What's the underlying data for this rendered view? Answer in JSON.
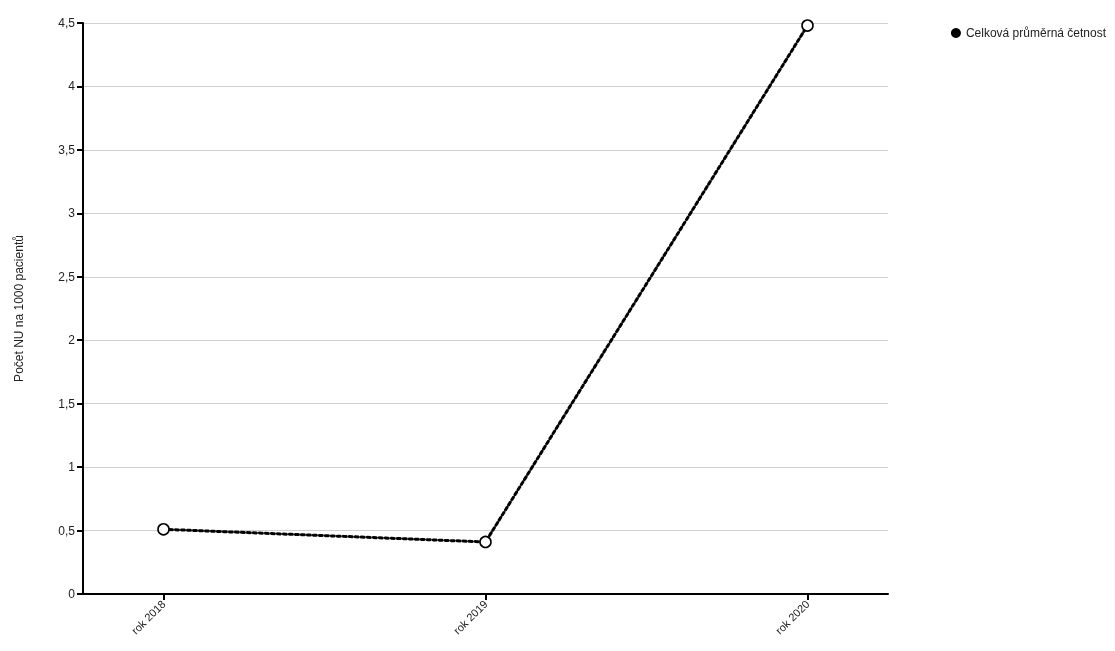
{
  "chart_data": {
    "type": "line",
    "ylabel": "Počet NU na 1000 pacientů",
    "categories": [
      "rok 2018",
      "rok 2019",
      "rok 2020"
    ],
    "series": [
      {
        "name": "Celková průměrná četnost",
        "color": "#000000",
        "values": [
          0.51,
          0.41,
          4.48
        ]
      }
    ],
    "ylim": [
      0,
      4.5
    ],
    "yticks": [
      0,
      {
        "value": 0.5,
        "label": "0,5"
      },
      1,
      {
        "value": 1.5,
        "label": "1,5"
      },
      2,
      {
        "value": 2.5,
        "label": "2,5"
      },
      3,
      {
        "value": 3.5,
        "label": "3,5"
      },
      4,
      {
        "value": 4.5,
        "label": "4,5"
      }
    ],
    "grid": "y",
    "legend": "top right",
    "marker": "circle",
    "line_style": "dotted"
  }
}
